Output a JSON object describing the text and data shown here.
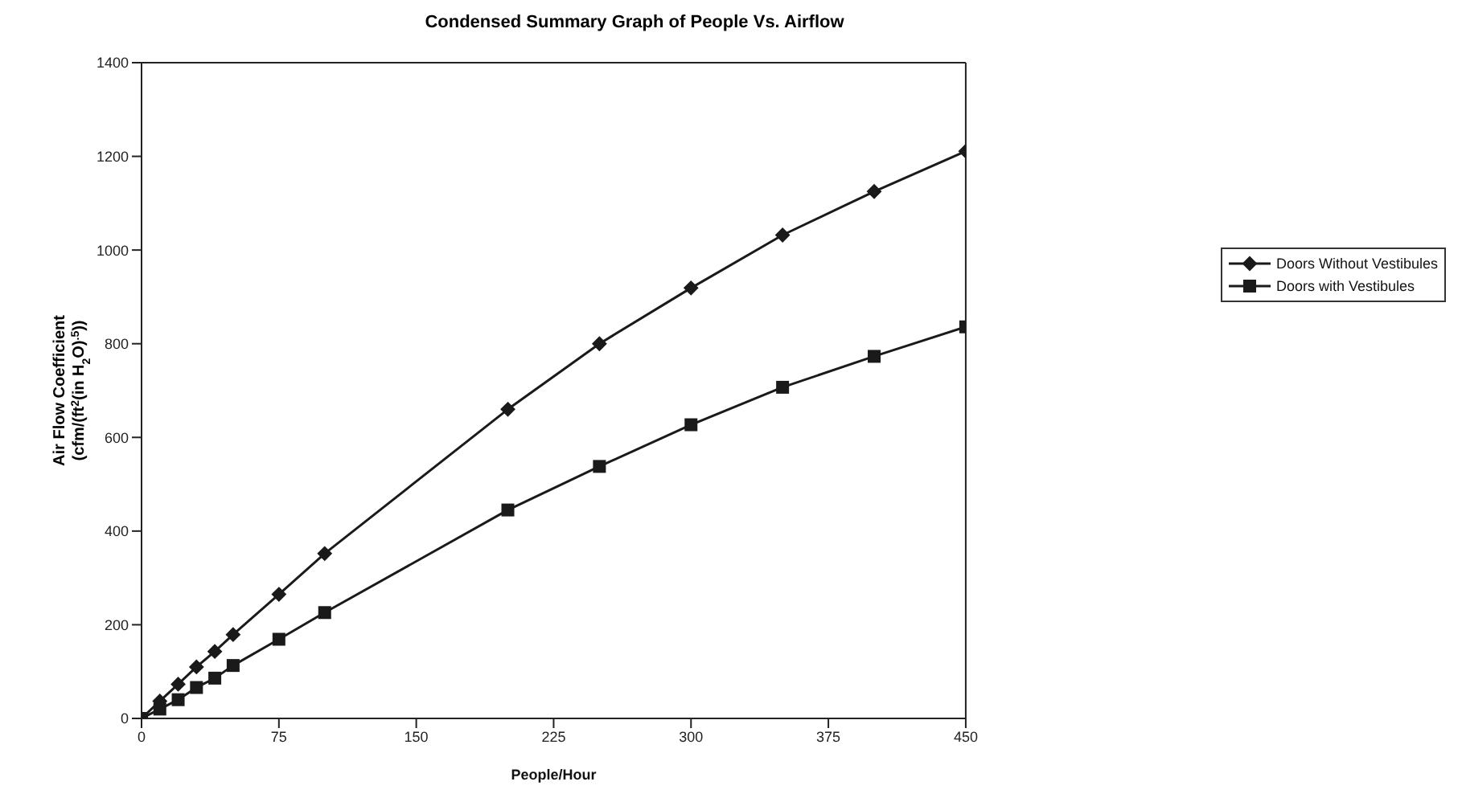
{
  "chart_data": {
    "type": "line",
    "title": "Condensed Summary Graph of People Vs. Airflow",
    "xlabel": "People/Hour",
    "ylabel": "Air Flow Coefficient\n(cfm/(ft$^{2}$(in H$_{2}$O)$^{.5}$))",
    "x": [
      0,
      10,
      20,
      30,
      40,
      50,
      75,
      100,
      200,
      250,
      300,
      350,
      400,
      450
    ],
    "series": [
      {
        "name": "Doors Without Vestibules",
        "color": "#1a1a1a",
        "marker": "diamond",
        "values": [
          0,
          37,
          73,
          110,
          143,
          179,
          265,
          352,
          660,
          800,
          919,
          1032,
          1125,
          1211
        ]
      },
      {
        "name": "Doors with Vestibules",
        "color": "#1a1a1a",
        "marker": "square",
        "values": [
          0,
          20,
          40,
          66,
          86,
          113,
          169,
          226,
          445,
          538,
          627,
          707,
          773,
          836
        ]
      }
    ],
    "xlim": [
      0,
      450
    ],
    "xticks": [
      0,
      75,
      150,
      225,
      300,
      375,
      450
    ],
    "ylim": [
      0,
      1400
    ],
    "yticks": [
      0,
      200,
      400,
      600,
      800,
      1000,
      1200,
      1400
    ],
    "grid": false,
    "legend": "right",
    "line_style": "solid"
  }
}
